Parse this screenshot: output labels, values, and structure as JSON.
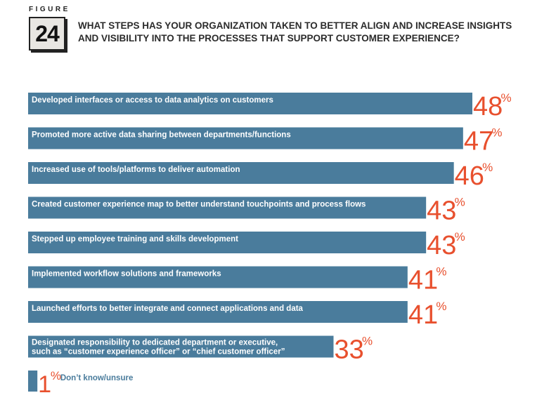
{
  "figure": {
    "label": "FIGURE",
    "number": "24"
  },
  "title": "WHAT STEPS HAS YOUR ORGANIZATION TAKEN TO BETTER ALIGN AND INCREASE INSIGHTS AND VISIBILITY INTO THE PROCESSES THAT SUPPORT CUSTOMER EXPERIENCE?",
  "colors": {
    "bar": "#4a7c9c",
    "value": "#e8502e",
    "title": "#2b2b2b"
  },
  "chart_data": {
    "type": "bar",
    "orientation": "horizontal",
    "title": "WHAT STEPS HAS YOUR ORGANIZATION TAKEN TO BETTER ALIGN AND INCREASE INSIGHTS AND VISIBILITY INTO THE PROCESSES THAT SUPPORT CUSTOMER EXPERIENCE?",
    "categories": [
      [
        "Developed interfaces or access to data analytics on customers"
      ],
      [
        "Promoted more active data sharing between departments/functions"
      ],
      [
        "Increased use of tools/platforms to deliver automation"
      ],
      [
        "Created customer experience map to better understand touchpoints and process flows"
      ],
      [
        "Stepped up employee training and skills development"
      ],
      [
        "Implemented workflow solutions and frameworks"
      ],
      [
        "Launched efforts to better integrate and connect applications and data"
      ],
      [
        "Designated responsibility to dedicated department or executive,",
        "such as “customer experience officer” or “chief customer officer”"
      ],
      [
        "Don’t know/unsure"
      ]
    ],
    "values": [
      48,
      47,
      46,
      43,
      43,
      41,
      41,
      33,
      1
    ],
    "value_labels": [
      "48",
      "47",
      "46",
      "43",
      "43",
      "41",
      "41",
      "33",
      "1"
    ],
    "unit": "%",
    "xlim": [
      0,
      48
    ],
    "grid": false,
    "legend": "none"
  }
}
